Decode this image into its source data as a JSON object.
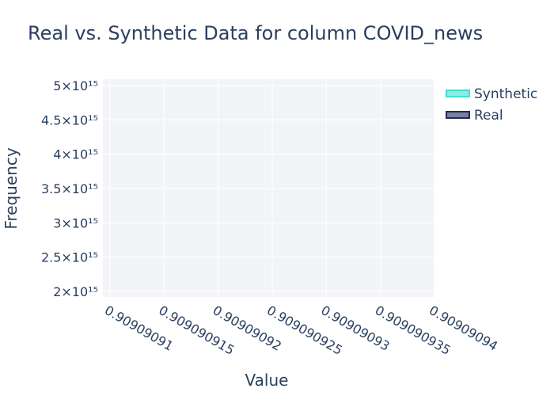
{
  "chart_data": {
    "type": "area",
    "title": "Real vs. Synthetic Data for column COVID_news",
    "xlabel": "Value",
    "ylabel": "Frequency",
    "x_ticks": [
      "0.90909091",
      "0.909090915",
      "0.90909092",
      "0.909090925",
      "0.90909093",
      "0.909090935",
      "0.90909094"
    ],
    "y_ticks": [
      "2×10¹⁵",
      "2.5×10¹⁵",
      "3×10¹⁵",
      "3.5×10¹⁵",
      "4×10¹⁵",
      "4.5×10¹⁵",
      "5×10¹⁵"
    ],
    "xlim": [
      0.909090909,
      0.90909094
    ],
    "ylim": [
      1930000000000000.0,
      5070000000000000.0
    ],
    "grid": true,
    "legend_position": "top-right",
    "series": [
      {
        "name": "Synthetic",
        "color": "#40e0d0",
        "values": []
      },
      {
        "name": "Real",
        "color": "#1f2a5a",
        "values": []
      }
    ]
  }
}
